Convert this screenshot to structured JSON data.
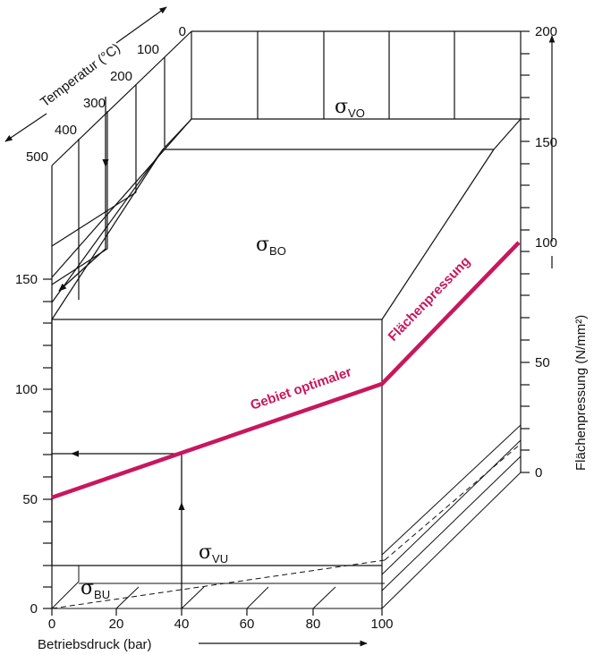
{
  "diagram": {
    "x_axis": {
      "label": "Betriebsdruck (bar)",
      "ticks": [
        "0",
        "20",
        "40",
        "60",
        "80",
        "100"
      ]
    },
    "y_axis_left": {
      "ticks": [
        "0",
        "50",
        "100",
        "150"
      ]
    },
    "y_axis_right": {
      "label": "Flächenpressung (N/mm²)",
      "ticks": [
        "0",
        "50",
        "100",
        "150",
        "200"
      ]
    },
    "depth_axis": {
      "label": "Temperatur (°C)",
      "ticks": [
        "0",
        "100",
        "200",
        "300",
        "400",
        "500"
      ]
    },
    "regions": {
      "vo": {
        "symbol": "σ",
        "sub": "VO"
      },
      "bo": {
        "symbol": "σ",
        "sub": "BO"
      },
      "vu": {
        "symbol": "σ",
        "sub": "VU"
      },
      "bu": {
        "symbol": "σ",
        "sub": "BU"
      }
    },
    "optimal_label_1": "Gebiet optimaler",
    "optimal_label_2": "Flächenpressung",
    "colors": {
      "accent": "#c8175d",
      "line": "#111111"
    }
  }
}
